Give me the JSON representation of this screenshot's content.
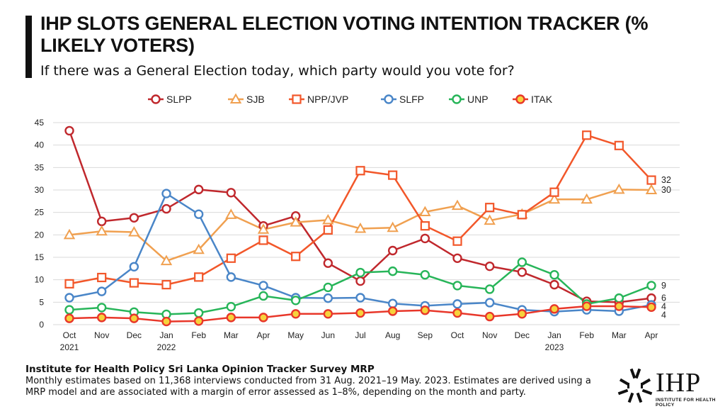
{
  "header": {
    "title": "IHP SLOTS GENERAL ELECTION VOTING INTENTION TRACKER (% LIKELY VOTERS)",
    "subtitle": "If there was a General Election today, which party would you vote for?"
  },
  "footer": {
    "source_title": "Institute for Health Policy Sri Lanka Opinion Tracker Survey MRP",
    "note": "Monthly estimates based on 11,368 interviews conducted from 31 Aug. 2021–19 May. 2023. Estimates are derived using a MRP model and are associated with a margin of error assessed as 1–8%, depending on the month and party."
  },
  "logo": {
    "text": "IHP",
    "sub": "INSTITUTE FOR HEALTH POLICY"
  },
  "chart_data": {
    "type": "line",
    "categories": [
      "Oct",
      "Nov",
      "Dec",
      "Jan",
      "Feb",
      "Mar",
      "Apr",
      "May",
      "Jun",
      "Jul",
      "Aug",
      "Sep",
      "Oct",
      "Nov",
      "Dec",
      "Jan",
      "Feb",
      "Mar",
      "Apr"
    ],
    "year_labels": [
      {
        "index": 0,
        "label": "2021"
      },
      {
        "index": 3,
        "label": "2022"
      },
      {
        "index": 15,
        "label": "2023"
      }
    ],
    "ylim": [
      0,
      45
    ],
    "yticks": [
      0,
      5,
      10,
      15,
      20,
      25,
      30,
      35,
      40,
      45
    ],
    "grid": true,
    "legend_placement": "top",
    "series": [
      {
        "name": "SLPP",
        "color": "#c0282d",
        "marker": "circle",
        "end_label": "6",
        "values": [
          43.2,
          23.0,
          23.8,
          25.8,
          30.1,
          29.4,
          22.0,
          24.2,
          13.7,
          9.7,
          16.5,
          19.2,
          14.8,
          13.0,
          11.7,
          8.9,
          5.2,
          5.0,
          5.9
        ]
      },
      {
        "name": "SJB",
        "color": "#f0a050",
        "marker": "triangle",
        "end_label": "30",
        "values": [
          20.0,
          20.8,
          20.6,
          14.2,
          16.7,
          24.5,
          21.2,
          22.8,
          23.3,
          21.4,
          21.6,
          25.1,
          26.5,
          23.2,
          24.6,
          27.9,
          27.9,
          30.1,
          30.0
        ]
      },
      {
        "name": "NPP/JVP",
        "color": "#f2572a",
        "marker": "square",
        "end_label": "32",
        "values": [
          9.1,
          10.5,
          9.3,
          8.9,
          10.6,
          14.8,
          18.8,
          15.2,
          21.1,
          34.3,
          33.3,
          22.0,
          18.6,
          26.1,
          24.5,
          29.5,
          42.2,
          39.9,
          32.2
        ]
      },
      {
        "name": "SLFP",
        "color": "#4a86c8",
        "marker": "circle",
        "end_label": "4",
        "values": [
          6.0,
          7.4,
          12.9,
          29.2,
          24.6,
          10.6,
          8.7,
          6.0,
          5.9,
          6.0,
          4.7,
          4.2,
          4.6,
          4.9,
          3.3,
          2.9,
          3.3,
          3.0,
          4.4
        ]
      },
      {
        "name": "UNP",
        "color": "#27b559",
        "marker": "circle",
        "end_label": "9",
        "values": [
          3.3,
          3.8,
          2.8,
          2.3,
          2.6,
          4.0,
          6.4,
          5.4,
          8.3,
          11.6,
          11.9,
          11.1,
          8.7,
          7.9,
          13.9,
          11.1,
          4.6,
          5.9,
          8.7
        ]
      },
      {
        "name": "ITAK",
        "color": "#e8372a",
        "marker": "circle-yellow",
        "end_label": "4",
        "values": [
          1.4,
          1.6,
          1.4,
          0.7,
          0.8,
          1.6,
          1.6,
          2.4,
          2.4,
          2.6,
          3.0,
          3.2,
          2.6,
          1.8,
          2.4,
          3.5,
          4.1,
          4.1,
          3.9
        ]
      }
    ]
  }
}
